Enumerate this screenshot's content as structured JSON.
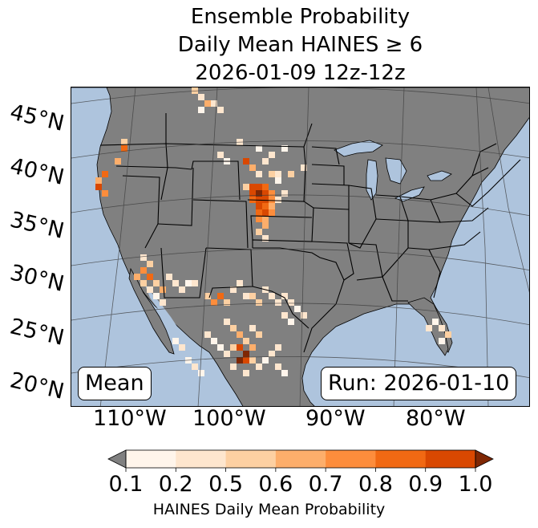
{
  "title": {
    "line1": "Ensemble Probability",
    "line2": "Daily Mean HAINES ≥ 6",
    "line3": "2026-01-09 12z-12z"
  },
  "map": {
    "land_color": "#808080",
    "ocean_color": "#aec4dd",
    "lat_labels": [
      "45°N",
      "40°N",
      "35°N",
      "30°N",
      "25°N",
      "20°N"
    ],
    "lon_labels": [
      "110°W",
      "100°W",
      "90°W",
      "80°W"
    ],
    "mean_label": "Mean",
    "run_label": "Run: 2026-01-10"
  },
  "colorbar": {
    "ticks": [
      "0.1",
      "0.2",
      "0.5",
      "0.6",
      "0.7",
      "0.8",
      "0.9",
      "1.0"
    ],
    "colors": [
      "#fff5eb",
      "#fee6ce",
      "#fdd0a2",
      "#fdae6b",
      "#fd8d3c",
      "#f16913",
      "#d94801",
      "#7f2704"
    ],
    "under_color": "#808080",
    "label": "HAINES Daily Mean Probability"
  }
}
